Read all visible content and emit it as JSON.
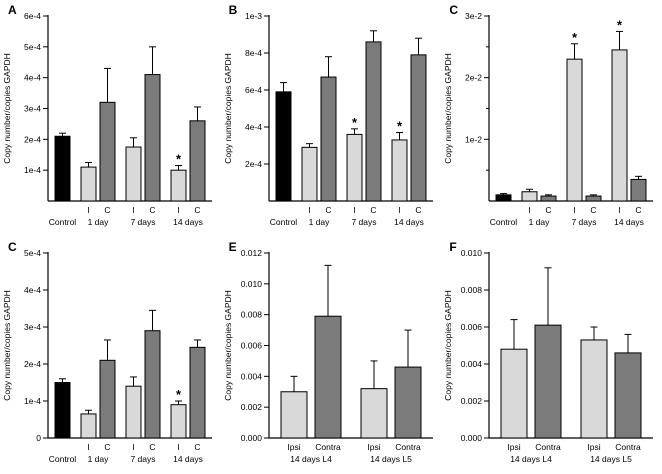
{
  "figure": {
    "palette": {
      "control": "#000000",
      "light": "#d9d9d9",
      "dark": "#7b7b7b",
      "border": "#000000",
      "axis": "#000000",
      "text": "#000000",
      "background": "#ffffff"
    }
  },
  "chart_data": [
    {
      "panel": "A",
      "type": "bar",
      "ylabel": "Copy number/copies GAPDH",
      "ylim": [
        0,
        0.0006
      ],
      "yticks": [
        {
          "v": 0.0001,
          "label": "1e-4"
        },
        {
          "v": 0.0002,
          "label": "2e-4"
        },
        {
          "v": 0.0003,
          "label": "3e-4"
        },
        {
          "v": 0.0004,
          "label": "4e-4"
        },
        {
          "v": 0.0005,
          "label": "5e-4"
        },
        {
          "v": 0.0006,
          "label": "6e-4"
        }
      ],
      "groups": [
        "Control",
        "1 day",
        "7 days",
        "14 days"
      ],
      "bars": [
        {
          "tick": "",
          "group": 0,
          "value": 0.00021,
          "err": 1e-05,
          "color": "control",
          "sig": false
        },
        {
          "tick": "I",
          "group": 1,
          "value": 0.00011,
          "err": 1.5e-05,
          "color": "light",
          "sig": false
        },
        {
          "tick": "C",
          "group": 1,
          "value": 0.00032,
          "err": 0.00011,
          "color": "dark",
          "sig": false
        },
        {
          "tick": "I",
          "group": 2,
          "value": 0.000175,
          "err": 3e-05,
          "color": "light",
          "sig": false
        },
        {
          "tick": "C",
          "group": 2,
          "value": 0.00041,
          "err": 9e-05,
          "color": "dark",
          "sig": false
        },
        {
          "tick": "I",
          "group": 3,
          "value": 0.0001,
          "err": 1.5e-05,
          "color": "light",
          "sig": true
        },
        {
          "tick": "C",
          "group": 3,
          "value": 0.00026,
          "err": 4.5e-05,
          "color": "dark",
          "sig": false
        }
      ]
    },
    {
      "panel": "B",
      "type": "bar",
      "ylabel": "Copy number/copies GAPDH",
      "ylim": [
        0,
        0.001
      ],
      "yticks": [
        {
          "v": 0.0002,
          "label": "2e-4"
        },
        {
          "v": 0.0004,
          "label": "4e-4"
        },
        {
          "v": 0.0006,
          "label": "6e-4"
        },
        {
          "v": 0.0008,
          "label": "8e-4"
        },
        {
          "v": 0.001,
          "label": "1e-3"
        }
      ],
      "groups": [
        "Control",
        "1 day",
        "7 days",
        "14 days"
      ],
      "bars": [
        {
          "tick": "",
          "group": 0,
          "value": 0.00059,
          "err": 5e-05,
          "color": "control",
          "sig": false
        },
        {
          "tick": "I",
          "group": 1,
          "value": 0.00029,
          "err": 2e-05,
          "color": "light",
          "sig": false
        },
        {
          "tick": "C",
          "group": 1,
          "value": 0.00067,
          "err": 0.00011,
          "color": "dark",
          "sig": false
        },
        {
          "tick": "I",
          "group": 2,
          "value": 0.00036,
          "err": 3e-05,
          "color": "light",
          "sig": true
        },
        {
          "tick": "C",
          "group": 2,
          "value": 0.00086,
          "err": 6e-05,
          "color": "dark",
          "sig": false
        },
        {
          "tick": "I",
          "group": 3,
          "value": 0.00033,
          "err": 4e-05,
          "color": "light",
          "sig": true
        },
        {
          "tick": "C",
          "group": 3,
          "value": 0.00079,
          "err": 9e-05,
          "color": "dark",
          "sig": false
        }
      ]
    },
    {
      "panel": "C",
      "type": "bar",
      "ylabel": "Copy number/copies GAPDH",
      "ylim": [
        0,
        0.03
      ],
      "yticks": [
        {
          "v": 0.005,
          "label": ""
        },
        {
          "v": 0.01,
          "label": "1e-2"
        },
        {
          "v": 0.015,
          "label": ""
        },
        {
          "v": 0.02,
          "label": "2e-2"
        },
        {
          "v": 0.025,
          "label": ""
        },
        {
          "v": 0.03,
          "label": "3e-2"
        }
      ],
      "groups": [
        "Control",
        "1 day",
        "7 days",
        "14 days"
      ],
      "bars": [
        {
          "tick": "",
          "group": 0,
          "value": 0.001,
          "err": 0.0002,
          "color": "control",
          "sig": false
        },
        {
          "tick": "I",
          "group": 1,
          "value": 0.0015,
          "err": 0.0004,
          "color": "light",
          "sig": false
        },
        {
          "tick": "C",
          "group": 1,
          "value": 0.0008,
          "err": 0.0002,
          "color": "dark",
          "sig": false
        },
        {
          "tick": "I",
          "group": 2,
          "value": 0.023,
          "err": 0.0025,
          "color": "light",
          "sig": true
        },
        {
          "tick": "C",
          "group": 2,
          "value": 0.0008,
          "err": 0.0002,
          "color": "dark",
          "sig": false
        },
        {
          "tick": "I",
          "group": 3,
          "value": 0.0245,
          "err": 0.003,
          "color": "light",
          "sig": true
        },
        {
          "tick": "C",
          "group": 3,
          "value": 0.0035,
          "err": 0.0005,
          "color": "dark",
          "sig": false
        }
      ]
    },
    {
      "panel": "C",
      "type": "bar",
      "ylabel": "Copy number/copies GAPDH",
      "ylim": [
        0,
        0.0005
      ],
      "yticks": [
        {
          "v": 0,
          "label": "0"
        },
        {
          "v": 0.0001,
          "label": "1e-4"
        },
        {
          "v": 0.0002,
          "label": "2e-4"
        },
        {
          "v": 0.0003,
          "label": "3e-4"
        },
        {
          "v": 0.0004,
          "label": "4e-4"
        },
        {
          "v": 0.0005,
          "label": "5e-4"
        }
      ],
      "groups": [
        "Control",
        "1 day",
        "7 days",
        "14 days"
      ],
      "bars": [
        {
          "tick": "",
          "group": 0,
          "value": 0.00015,
          "err": 1e-05,
          "color": "control",
          "sig": false
        },
        {
          "tick": "I",
          "group": 1,
          "value": 6.5e-05,
          "err": 1e-05,
          "color": "light",
          "sig": false
        },
        {
          "tick": "C",
          "group": 1,
          "value": 0.00021,
          "err": 5.5e-05,
          "color": "dark",
          "sig": false
        },
        {
          "tick": "I",
          "group": 2,
          "value": 0.00014,
          "err": 2.5e-05,
          "color": "light",
          "sig": false
        },
        {
          "tick": "C",
          "group": 2,
          "value": 0.00029,
          "err": 5.5e-05,
          "color": "dark",
          "sig": false
        },
        {
          "tick": "I",
          "group": 3,
          "value": 9e-05,
          "err": 1e-05,
          "color": "light",
          "sig": true
        },
        {
          "tick": "C",
          "group": 3,
          "value": 0.000245,
          "err": 2e-05,
          "color": "dark",
          "sig": false
        }
      ]
    },
    {
      "panel": "E",
      "type": "bar",
      "ylabel": "Copy number/copies GAPDH",
      "ylim": [
        0,
        0.012
      ],
      "yticks": [
        {
          "v": 0,
          "label": "0.000"
        },
        {
          "v": 0.002,
          "label": "0.002"
        },
        {
          "v": 0.004,
          "label": "0.004"
        },
        {
          "v": 0.006,
          "label": "0.006"
        },
        {
          "v": 0.008,
          "label": "0.008"
        },
        {
          "v": 0.01,
          "label": "0.010"
        },
        {
          "v": 0.012,
          "label": "0.012"
        }
      ],
      "groups": [
        "14 days L4",
        "14 days L5"
      ],
      "bars": [
        {
          "tick": "Ipsi",
          "group": 0,
          "value": 0.003,
          "err": 0.001,
          "color": "light",
          "sig": false
        },
        {
          "tick": "Contra",
          "group": 0,
          "value": 0.0079,
          "err": 0.0033,
          "color": "dark",
          "sig": false
        },
        {
          "tick": "Ipsi",
          "group": 1,
          "value": 0.0032,
          "err": 0.0018,
          "color": "light",
          "sig": false
        },
        {
          "tick": "Contra",
          "group": 1,
          "value": 0.0046,
          "err": 0.0024,
          "color": "dark",
          "sig": false
        }
      ]
    },
    {
      "panel": "F",
      "type": "bar",
      "ylabel": "Copy number/copies GAPDH",
      "ylim": [
        0,
        0.01
      ],
      "yticks": [
        {
          "v": 0,
          "label": "0.000"
        },
        {
          "v": 0.002,
          "label": "0.002"
        },
        {
          "v": 0.004,
          "label": "0.004"
        },
        {
          "v": 0.006,
          "label": "0.006"
        },
        {
          "v": 0.008,
          "label": "0.008"
        },
        {
          "v": 0.01,
          "label": "0.010"
        }
      ],
      "groups": [
        "14 days L4",
        "14 days L5"
      ],
      "bars": [
        {
          "tick": "Ipsi",
          "group": 0,
          "value": 0.0048,
          "err": 0.0016,
          "color": "light",
          "sig": false
        },
        {
          "tick": "Contra",
          "group": 0,
          "value": 0.0061,
          "err": 0.0031,
          "color": "dark",
          "sig": false
        },
        {
          "tick": "Ipsi",
          "group": 1,
          "value": 0.0053,
          "err": 0.0007,
          "color": "light",
          "sig": false
        },
        {
          "tick": "Contra",
          "group": 1,
          "value": 0.0046,
          "err": 0.001,
          "color": "dark",
          "sig": false
        }
      ]
    }
  ]
}
